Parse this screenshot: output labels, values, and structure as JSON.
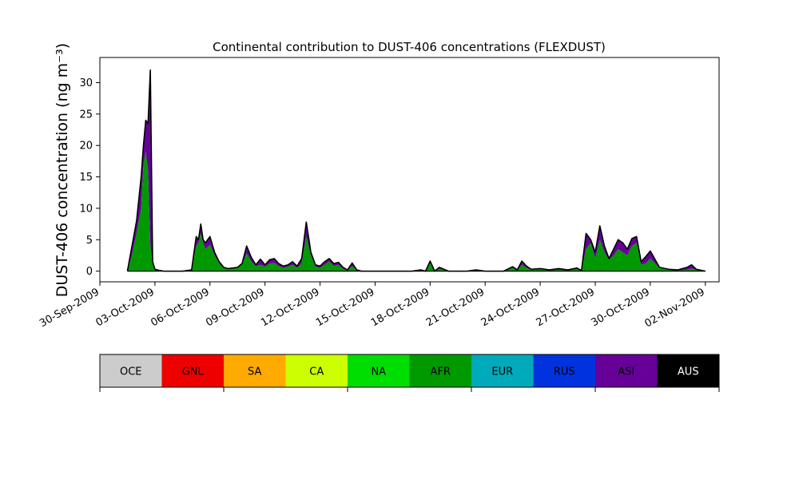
{
  "chart_data": {
    "type": "area",
    "title": "Continental contribution to DUST-406 concentrations (FLEXDUST)",
    "ylabel": "DUST-406 concentration (ng m⁻³)",
    "xlabel": "",
    "x_axis": {
      "range": [
        "2009-09-30T00:00",
        "2009-11-02T18:00"
      ],
      "tick_dates": [
        "2009-09-30",
        "2009-10-03",
        "2009-10-06",
        "2009-10-09",
        "2009-10-12",
        "2009-10-15",
        "2009-10-18",
        "2009-10-21",
        "2009-10-24",
        "2009-10-27",
        "2009-10-30",
        "2009-11-02"
      ],
      "tick_labels": [
        "30-Sep-2009",
        "03-Oct-2009",
        "06-Oct-2009",
        "09-Oct-2009",
        "12-Oct-2009",
        "15-Oct-2009",
        "18-Oct-2009",
        "21-Oct-2009",
        "24-Oct-2009",
        "27-Oct-2009",
        "30-Oct-2009",
        "02-Nov-2009"
      ]
    },
    "y_axis": {
      "range": [
        -1.7,
        34
      ],
      "ticks": [
        0,
        5,
        10,
        15,
        20,
        25,
        30
      ]
    },
    "grid": false,
    "legend_placement": "below",
    "legend": [
      {
        "label": "OCE",
        "color": "#cccccc",
        "text_color": "#000000"
      },
      {
        "label": "GNL",
        "color": "#ee0000",
        "text_color": "#000000"
      },
      {
        "label": "SA",
        "color": "#ffaa00",
        "text_color": "#000000"
      },
      {
        "label": "CA",
        "color": "#ccff00",
        "text_color": "#000000"
      },
      {
        "label": "NA",
        "color": "#00dd00",
        "text_color": "#000000"
      },
      {
        "label": "AFR",
        "color": "#009900",
        "text_color": "#000000"
      },
      {
        "label": "EUR",
        "color": "#00aabb",
        "text_color": "#000000"
      },
      {
        "label": "RUS",
        "color": "#0033dd",
        "text_color": "#000000"
      },
      {
        "label": "ASI",
        "color": "#660099",
        "text_color": "#000000"
      },
      {
        "label": "AUS",
        "color": "#000000",
        "text_color": "#ffffff"
      }
    ],
    "series": [
      {
        "region": "AFR",
        "color": "#009900"
      },
      {
        "region": "ASI",
        "color": "#660099"
      }
    ],
    "x": [
      "2009-10-01T12:00",
      "2009-10-01T18:00",
      "2009-10-02T00:00",
      "2009-10-02T06:00",
      "2009-10-02T09:00",
      "2009-10-02T12:00",
      "2009-10-02T15:00",
      "2009-10-02T18:00",
      "2009-10-02T21:00",
      "2009-10-03T00:00",
      "2009-10-03T06:00",
      "2009-10-03T12:00",
      "2009-10-03T18:00",
      "2009-10-04T00:00",
      "2009-10-04T12:00",
      "2009-10-05T00:00",
      "2009-10-05T06:00",
      "2009-10-05T09:00",
      "2009-10-05T12:00",
      "2009-10-05T15:00",
      "2009-10-05T18:00",
      "2009-10-06T00:00",
      "2009-10-06T06:00",
      "2009-10-06T12:00",
      "2009-10-06T18:00",
      "2009-10-07T00:00",
      "2009-10-07T12:00",
      "2009-10-07T18:00",
      "2009-10-08T00:00",
      "2009-10-08T06:00",
      "2009-10-08T12:00",
      "2009-10-08T18:00",
      "2009-10-09T00:00",
      "2009-10-09T06:00",
      "2009-10-09T12:00",
      "2009-10-09T18:00",
      "2009-10-10T00:00",
      "2009-10-10T06:00",
      "2009-10-10T12:00",
      "2009-10-10T18:00",
      "2009-10-11T00:00",
      "2009-10-11T06:00",
      "2009-10-11T12:00",
      "2009-10-11T18:00",
      "2009-10-12T00:00",
      "2009-10-12T06:00",
      "2009-10-12T12:00",
      "2009-10-12T18:00",
      "2009-10-13T00:00",
      "2009-10-13T06:00",
      "2009-10-13T12:00",
      "2009-10-13T18:00",
      "2009-10-14T00:00",
      "2009-10-14T06:00",
      "2009-10-14T12:00",
      "2009-10-15T00:00",
      "2009-10-16T00:00",
      "2009-10-17T00:00",
      "2009-10-17T12:00",
      "2009-10-17T18:00",
      "2009-10-18T00:00",
      "2009-10-18T06:00",
      "2009-10-18T12:00",
      "2009-10-19T00:00",
      "2009-10-20T00:00",
      "2009-10-20T12:00",
      "2009-10-21T00:00",
      "2009-10-22T00:00",
      "2009-10-22T12:00",
      "2009-10-22T18:00",
      "2009-10-23T00:00",
      "2009-10-23T06:00",
      "2009-10-23T12:00",
      "2009-10-24T00:00",
      "2009-10-24T12:00",
      "2009-10-25T00:00",
      "2009-10-25T12:00",
      "2009-10-26T00:00",
      "2009-10-26T06:00",
      "2009-10-26T12:00",
      "2009-10-26T18:00",
      "2009-10-27T00:00",
      "2009-10-27T06:00",
      "2009-10-27T12:00",
      "2009-10-27T18:00",
      "2009-10-28T00:00",
      "2009-10-28T06:00",
      "2009-10-28T12:00",
      "2009-10-28T18:00",
      "2009-10-29T00:00",
      "2009-10-29T06:00",
      "2009-10-29T12:00",
      "2009-10-29T18:00",
      "2009-10-30T00:00",
      "2009-10-30T12:00",
      "2009-10-31T00:00",
      "2009-10-31T12:00",
      "2009-11-01T00:00",
      "2009-11-01T06:00",
      "2009-11-01T12:00",
      "2009-11-02T00:00"
    ],
    "values_afr": [
      0.0,
      2.5,
      6.0,
      10.0,
      17.0,
      19.0,
      16.0,
      4.0,
      1.0,
      0.2,
      0.1,
      0.0,
      0.0,
      0.0,
      0.0,
      0.1,
      4.0,
      4.5,
      6.0,
      4.5,
      3.5,
      4.2,
      2.5,
      1.2,
      0.5,
      0.3,
      0.5,
      1.0,
      2.8,
      1.5,
      0.8,
      1.0,
      0.7,
      1.2,
      1.3,
      0.8,
      0.5,
      0.7,
      1.0,
      0.5,
      1.2,
      5.5,
      2.5,
      0.7,
      0.5,
      1.0,
      1.5,
      0.8,
      1.0,
      0.4,
      0.1,
      0.8,
      0.1,
      0.0,
      0.0,
      0.0,
      0.0,
      0.0,
      0.2,
      0.0,
      1.2,
      0.0,
      0.4,
      0.0,
      0.0,
      0.1,
      0.0,
      0.0,
      0.5,
      0.1,
      1.0,
      0.5,
      0.2,
      0.3,
      0.1,
      0.2,
      0.1,
      0.3,
      0.0,
      3.5,
      4.5,
      2.0,
      5.0,
      3.0,
      1.8,
      2.5,
      3.5,
      3.0,
      2.5,
      4.0,
      4.5,
      1.0,
      1.2,
      2.0,
      0.5,
      0.2,
      0.1,
      0.2,
      0.4,
      0.2,
      0.0
    ],
    "values_total": [
      0.0,
      4.0,
      8.0,
      15.0,
      20.0,
      24.0,
      23.5,
      32.0,
      1.5,
      0.3,
      0.1,
      0.0,
      0.0,
      0.0,
      0.0,
      0.2,
      5.5,
      5.0,
      7.5,
      5.0,
      4.5,
      5.5,
      3.0,
      1.5,
      0.6,
      0.4,
      0.6,
      1.2,
      4.0,
      2.2,
      1.0,
      1.9,
      1.0,
      1.8,
      2.0,
      1.2,
      0.8,
      1.0,
      1.5,
      0.8,
      2.0,
      7.8,
      3.0,
      1.0,
      0.8,
      1.5,
      2.0,
      1.2,
      1.4,
      0.6,
      0.2,
      1.3,
      0.2,
      0.0,
      0.0,
      0.0,
      0.0,
      0.0,
      0.2,
      0.0,
      1.6,
      0.0,
      0.6,
      0.0,
      0.0,
      0.2,
      0.0,
      0.0,
      0.7,
      0.2,
      1.6,
      0.8,
      0.3,
      0.4,
      0.2,
      0.4,
      0.2,
      0.5,
      0.1,
      6.0,
      5.0,
      3.0,
      7.2,
      4.0,
      2.0,
      3.5,
      5.0,
      4.5,
      3.5,
      5.2,
      5.5,
      1.5,
      2.3,
      3.2,
      0.6,
      0.3,
      0.2,
      0.6,
      1.0,
      0.3,
      0.0
    ]
  }
}
